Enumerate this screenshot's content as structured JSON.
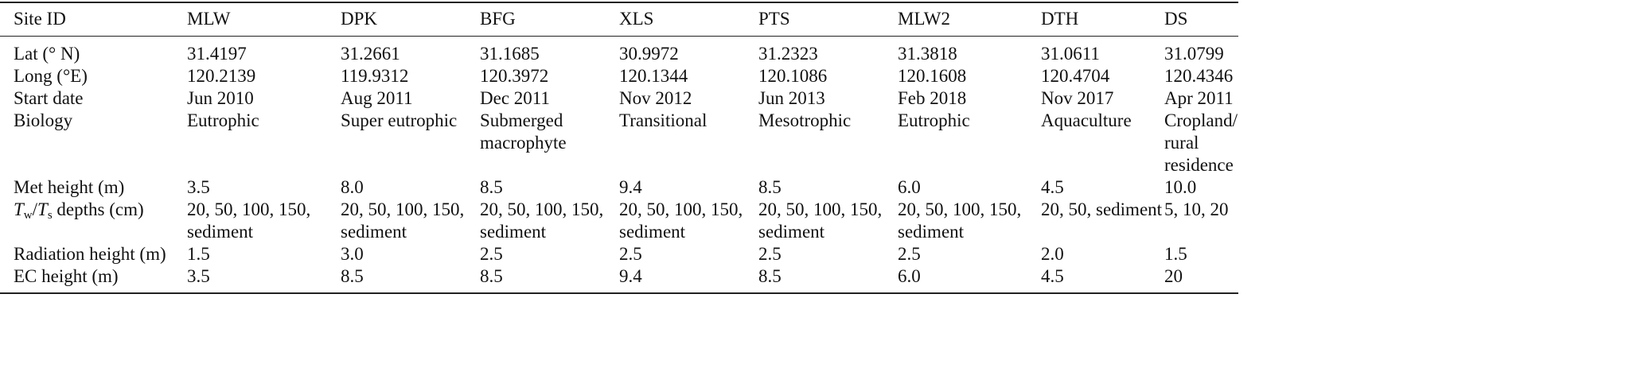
{
  "table": {
    "header": [
      "Site ID",
      "MLW",
      "DPK",
      "BFG",
      "XLS",
      "PTS",
      "MLW2",
      "DTH",
      "DS"
    ],
    "rows": [
      [
        "Lat (° N)",
        "31.4197",
        "31.2661",
        "31.1685",
        "30.9972",
        "31.2323",
        "31.3818",
        "31.0611",
        "31.0799"
      ],
      [
        "Long (°E)",
        "120.2139",
        "119.9312",
        "120.3972",
        "120.1344",
        "120.1086",
        "120.1608",
        "120.4704",
        "120.4346"
      ],
      [
        "Start date",
        "Jun 2010",
        "Aug 2011",
        "Dec 2011",
        "Nov 2012",
        "Jun 2013",
        "Feb 2018",
        "Nov 2017",
        "Apr 2011"
      ],
      [
        "Biology",
        "Eutrophic",
        "Super eutrophic",
        "Submerged macrophyte",
        "Transitional",
        "Mesotrophic",
        "Eutrophic",
        "Aquaculture",
        "Cropland/ rural residence"
      ],
      [
        "Met height (m)",
        "3.5",
        "8.0",
        "8.5",
        "9.4",
        "8.5",
        "6.0",
        "4.5",
        "10.0"
      ],
      [
        [
          "T",
          "w",
          "/",
          "T",
          "s",
          " depths (cm)"
        ],
        "20, 50, 100, 150, sediment",
        "20, 50, 100, 150, sediment",
        "20, 50, 100, 150, sediment",
        "20, 50, 100, 150, sediment",
        "20, 50, 100, 150, sediment",
        "20, 50, 100, 150, sediment",
        "20, 50, sediment",
        "5, 10, 20"
      ],
      [
        "Radiation height (m)",
        "1.5",
        "3.0",
        "2.5",
        "2.5",
        "2.5",
        "2.5",
        "2.0",
        "1.5"
      ],
      [
        "EC height (m)",
        "3.5",
        "8.5",
        "8.5",
        "9.4",
        "8.5",
        "6.0",
        "4.5",
        "20"
      ]
    ]
  }
}
